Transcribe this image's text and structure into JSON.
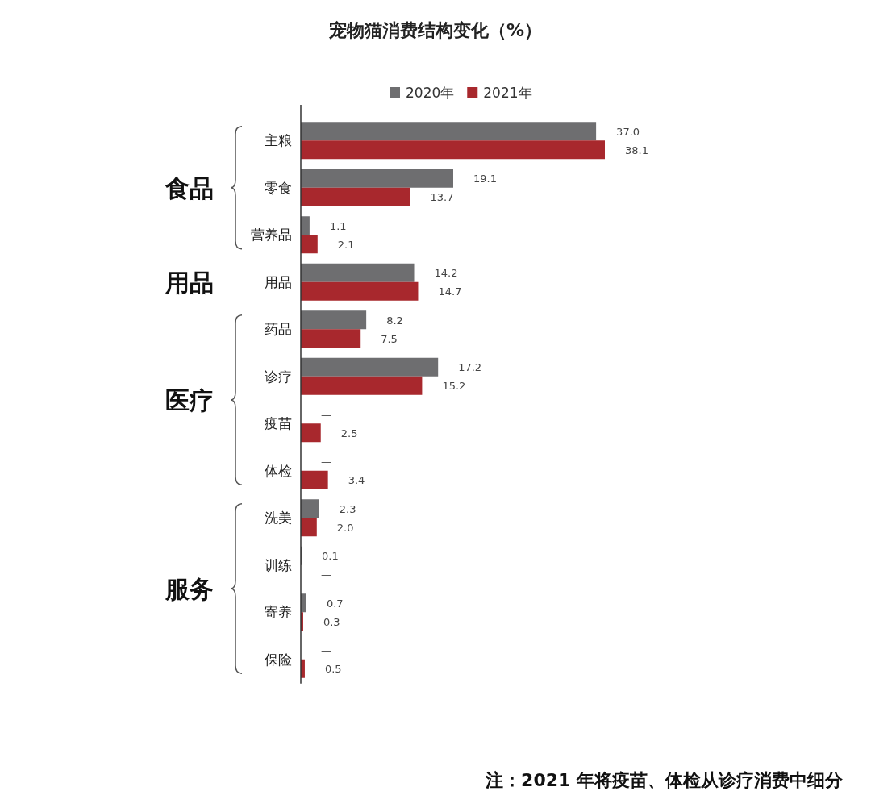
{
  "chart_data": {
    "type": "bar",
    "orientation": "horizontal",
    "title": "宠物猫消费结构变化（%）",
    "categories": [
      "主粮",
      "零食",
      "营养品",
      "用品",
      "药品",
      "诊疗",
      "疫苗",
      "体检",
      "洗美",
      "训练",
      "寄养",
      "保险"
    ],
    "series": [
      {
        "name": "2020年",
        "color": "#6e6e70",
        "values": [
          37.0,
          19.1,
          1.1,
          14.2,
          8.2,
          17.2,
          null,
          null,
          2.3,
          0.1,
          0.7,
          null
        ],
        "value_labels": [
          "37.0",
          "19.1",
          "1.1",
          "14.2",
          "8.2",
          "17.2",
          "—",
          "—",
          "2.3",
          "0.1",
          "0.7",
          "—"
        ]
      },
      {
        "name": "2021年",
        "color": "#a8282d",
        "values": [
          38.1,
          13.7,
          2.1,
          14.7,
          7.5,
          15.2,
          2.5,
          3.4,
          2.0,
          null,
          0.3,
          0.5
        ],
        "value_labels": [
          "38.1",
          "13.7",
          "2.1",
          "14.7",
          "7.5",
          "15.2",
          "2.5",
          "3.4",
          "2.0",
          "—",
          "0.3",
          "0.5"
        ]
      }
    ],
    "legend": "top",
    "annotations": [
      "食品",
      "用品",
      "医疗",
      "服务",
      "注：2021 年将疫苗、体检从诊疗消费中细分"
    ]
  }
}
